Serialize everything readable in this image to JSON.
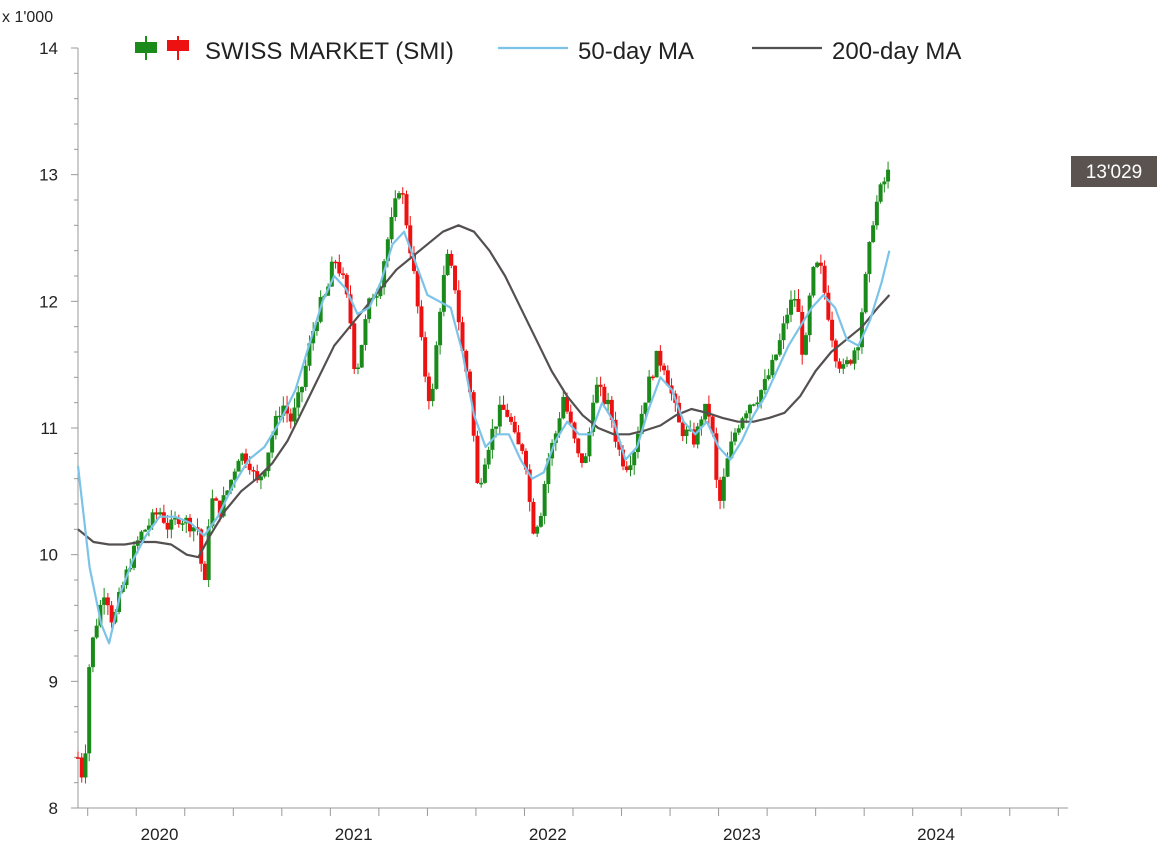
{
  "chart_data": {
    "type": "candlestick",
    "title": "SWISS MARKET (SMI)",
    "y_units_label": "x 1'000",
    "ylim": [
      8,
      14
    ],
    "yticks": [
      8,
      9,
      10,
      11,
      12,
      13,
      14
    ],
    "ytick_labels": [
      "8",
      "9",
      "10",
      "11",
      "12",
      "13",
      "14"
    ],
    "x_range_years": [
      2019.7,
      2024.8
    ],
    "xtick_years": [
      2020,
      2021,
      2022,
      2023,
      2024
    ],
    "xtick_labels": [
      "2020",
      "2021",
      "2022",
      "2023",
      "2024"
    ],
    "legend": {
      "position": "top",
      "entries": [
        "SWISS MARKET (SMI)",
        "50-day MA",
        "200-day MA"
      ]
    },
    "last_price_label": "13'029",
    "last_price_value": 13.029,
    "colors": {
      "up": "#1a8a1a",
      "down": "#ee1111",
      "ma50": "#7cc3e8",
      "ma200": "#555050",
      "label_bg": "#5a5350",
      "axis": "#999999"
    },
    "close_series": {
      "name": "SWISS MARKET (SMI)",
      "points": [
        [
          2019.7,
          8.4
        ],
        [
          2019.73,
          8.2
        ],
        [
          2019.76,
          9.2
        ],
        [
          2019.8,
          9.5
        ],
        [
          2019.84,
          9.75
        ],
        [
          2019.88,
          9.45
        ],
        [
          2019.92,
          9.7
        ],
        [
          2019.97,
          9.95
        ],
        [
          2020.02,
          10.15
        ],
        [
          2020.07,
          10.25
        ],
        [
          2020.12,
          10.35
        ],
        [
          2020.17,
          10.2
        ],
        [
          2020.22,
          10.3
        ],
        [
          2020.27,
          10.25
        ],
        [
          2020.32,
          10.2
        ],
        [
          2020.35,
          9.65
        ],
        [
          2020.38,
          10.45
        ],
        [
          2020.43,
          10.35
        ],
        [
          2020.48,
          10.55
        ],
        [
          2020.53,
          10.8
        ],
        [
          2020.58,
          10.75
        ],
        [
          2020.62,
          10.55
        ],
        [
          2020.66,
          10.7
        ],
        [
          2020.7,
          10.95
        ],
        [
          2020.75,
          11.2
        ],
        [
          2020.8,
          11.05
        ],
        [
          2020.85,
          11.3
        ],
        [
          2020.9,
          11.7
        ],
        [
          2020.94,
          11.95
        ],
        [
          2020.98,
          12.05
        ],
        [
          2021.02,
          12.35
        ],
        [
          2021.06,
          12.2
        ],
        [
          2021.1,
          11.9
        ],
        [
          2021.13,
          11.4
        ],
        [
          2021.17,
          11.75
        ],
        [
          2021.21,
          12.05
        ],
        [
          2021.25,
          12.1
        ],
        [
          2021.29,
          12.45
        ],
        [
          2021.32,
          12.65
        ],
        [
          2021.36,
          12.95
        ],
        [
          2021.4,
          12.55
        ],
        [
          2021.44,
          12.1
        ],
        [
          2021.48,
          11.5
        ],
        [
          2021.52,
          11.15
        ],
        [
          2021.56,
          11.9
        ],
        [
          2021.6,
          12.35
        ],
        [
          2021.64,
          12.15
        ],
        [
          2021.68,
          11.6
        ],
        [
          2021.72,
          11.3
        ],
        [
          2021.76,
          10.5
        ],
        [
          2021.8,
          10.8
        ],
        [
          2021.84,
          11.0
        ],
        [
          2021.88,
          11.15
        ],
        [
          2021.92,
          11.1
        ],
        [
          2021.96,
          10.85
        ],
        [
          2022.0,
          10.85
        ],
        [
          2022.04,
          10.2
        ],
        [
          2022.08,
          10.3
        ],
        [
          2022.12,
          10.75
        ],
        [
          2022.16,
          10.95
        ],
        [
          2022.2,
          11.25
        ],
        [
          2022.24,
          11.0
        ],
        [
          2022.28,
          10.75
        ],
        [
          2022.32,
          10.75
        ],
        [
          2022.36,
          11.35
        ],
        [
          2022.4,
          11.25
        ],
        [
          2022.44,
          11.15
        ],
        [
          2022.48,
          10.85
        ],
        [
          2022.52,
          10.7
        ],
        [
          2022.56,
          10.8
        ],
        [
          2022.6,
          11.1
        ],
        [
          2022.64,
          11.35
        ],
        [
          2022.68,
          11.55
        ],
        [
          2022.72,
          11.5
        ],
        [
          2022.76,
          11.25
        ],
        [
          2022.8,
          11.0
        ],
        [
          2022.84,
          10.95
        ],
        [
          2022.88,
          10.9
        ],
        [
          2022.92,
          11.15
        ],
        [
          2022.96,
          11.1
        ],
        [
          2023.0,
          10.35
        ],
        [
          2023.04,
          10.7
        ],
        [
          2023.08,
          10.95
        ],
        [
          2023.12,
          11.1
        ],
        [
          2023.16,
          11.2
        ],
        [
          2023.2,
          11.25
        ],
        [
          2023.24,
          11.35
        ],
        [
          2023.28,
          11.5
        ],
        [
          2023.32,
          11.7
        ],
        [
          2023.36,
          11.95
        ],
        [
          2023.4,
          12.05
        ],
        [
          2023.44,
          11.5
        ],
        [
          2023.48,
          12.2
        ],
        [
          2023.52,
          12.3
        ],
        [
          2023.56,
          11.95
        ],
        [
          2023.6,
          11.6
        ],
        [
          2023.64,
          11.45
        ],
        [
          2023.68,
          11.55
        ],
        [
          2023.72,
          11.7
        ],
        [
          2023.76,
          12.2
        ],
        [
          2023.8,
          12.7
        ],
        [
          2023.84,
          12.9
        ],
        [
          2023.88,
          13.03
        ]
      ]
    },
    "ma50_series": {
      "name": "50-day MA",
      "points": [
        [
          2019.7,
          10.7
        ],
        [
          2019.76,
          9.9
        ],
        [
          2019.82,
          9.45
        ],
        [
          2019.86,
          9.3
        ],
        [
          2019.92,
          9.7
        ],
        [
          2019.98,
          9.95
        ],
        [
          2020.05,
          10.15
        ],
        [
          2020.12,
          10.3
        ],
        [
          2020.2,
          10.3
        ],
        [
          2020.28,
          10.25
        ],
        [
          2020.35,
          10.15
        ],
        [
          2020.42,
          10.3
        ],
        [
          2020.5,
          10.55
        ],
        [
          2020.58,
          10.75
        ],
        [
          2020.66,
          10.85
        ],
        [
          2020.74,
          11.05
        ],
        [
          2020.82,
          11.3
        ],
        [
          2020.9,
          11.7
        ],
        [
          2020.96,
          12.0
        ],
        [
          2021.02,
          12.2
        ],
        [
          2021.08,
          12.1
        ],
        [
          2021.14,
          11.9
        ],
        [
          2021.2,
          11.95
        ],
        [
          2021.26,
          12.15
        ],
        [
          2021.32,
          12.45
        ],
        [
          2021.38,
          12.55
        ],
        [
          2021.44,
          12.3
        ],
        [
          2021.5,
          12.05
        ],
        [
          2021.56,
          12.0
        ],
        [
          2021.62,
          11.95
        ],
        [
          2021.68,
          11.6
        ],
        [
          2021.74,
          11.1
        ],
        [
          2021.8,
          10.85
        ],
        [
          2021.86,
          10.95
        ],
        [
          2021.92,
          10.95
        ],
        [
          2021.98,
          10.75
        ],
        [
          2022.04,
          10.6
        ],
        [
          2022.1,
          10.65
        ],
        [
          2022.16,
          10.9
        ],
        [
          2022.22,
          11.05
        ],
        [
          2022.28,
          10.95
        ],
        [
          2022.34,
          10.95
        ],
        [
          2022.4,
          11.2
        ],
        [
          2022.46,
          11.05
        ],
        [
          2022.52,
          10.75
        ],
        [
          2022.58,
          10.85
        ],
        [
          2022.64,
          11.15
        ],
        [
          2022.7,
          11.4
        ],
        [
          2022.76,
          11.3
        ],
        [
          2022.82,
          11.05
        ],
        [
          2022.88,
          10.95
        ],
        [
          2022.94,
          11.05
        ],
        [
          2023.0,
          10.85
        ],
        [
          2023.06,
          10.75
        ],
        [
          2023.12,
          10.9
        ],
        [
          2023.18,
          11.1
        ],
        [
          2023.24,
          11.25
        ],
        [
          2023.3,
          11.45
        ],
        [
          2023.36,
          11.65
        ],
        [
          2023.42,
          11.8
        ],
        [
          2023.48,
          11.95
        ],
        [
          2023.54,
          12.05
        ],
        [
          2023.6,
          11.95
        ],
        [
          2023.66,
          11.7
        ],
        [
          2023.72,
          11.65
        ],
        [
          2023.78,
          11.85
        ],
        [
          2023.84,
          12.15
        ],
        [
          2023.88,
          12.4
        ]
      ]
    },
    "ma200_series": {
      "name": "200-day MA",
      "points": [
        [
          2019.7,
          10.2
        ],
        [
          2019.78,
          10.1
        ],
        [
          2019.86,
          10.08
        ],
        [
          2019.94,
          10.08
        ],
        [
          2020.02,
          10.1
        ],
        [
          2020.1,
          10.1
        ],
        [
          2020.18,
          10.08
        ],
        [
          2020.26,
          10.0
        ],
        [
          2020.32,
          9.98
        ],
        [
          2020.38,
          10.15
        ],
        [
          2020.46,
          10.35
        ],
        [
          2020.54,
          10.5
        ],
        [
          2020.62,
          10.6
        ],
        [
          2020.7,
          10.72
        ],
        [
          2020.78,
          10.9
        ],
        [
          2020.86,
          11.15
        ],
        [
          2020.94,
          11.4
        ],
        [
          2021.02,
          11.65
        ],
        [
          2021.1,
          11.8
        ],
        [
          2021.18,
          11.95
        ],
        [
          2021.26,
          12.1
        ],
        [
          2021.34,
          12.25
        ],
        [
          2021.42,
          12.35
        ],
        [
          2021.5,
          12.45
        ],
        [
          2021.58,
          12.55
        ],
        [
          2021.66,
          12.6
        ],
        [
          2021.74,
          12.55
        ],
        [
          2021.82,
          12.4
        ],
        [
          2021.9,
          12.2
        ],
        [
          2021.98,
          11.95
        ],
        [
          2022.06,
          11.7
        ],
        [
          2022.14,
          11.45
        ],
        [
          2022.22,
          11.25
        ],
        [
          2022.3,
          11.1
        ],
        [
          2022.38,
          11.0
        ],
        [
          2022.46,
          10.95
        ],
        [
          2022.54,
          10.95
        ],
        [
          2022.62,
          10.98
        ],
        [
          2022.7,
          11.02
        ],
        [
          2022.78,
          11.1
        ],
        [
          2022.86,
          11.15
        ],
        [
          2022.94,
          11.12
        ],
        [
          2023.02,
          11.08
        ],
        [
          2023.1,
          11.05
        ],
        [
          2023.18,
          11.05
        ],
        [
          2023.26,
          11.08
        ],
        [
          2023.34,
          11.12
        ],
        [
          2023.42,
          11.25
        ],
        [
          2023.5,
          11.45
        ],
        [
          2023.58,
          11.6
        ],
        [
          2023.66,
          11.7
        ],
        [
          2023.74,
          11.8
        ],
        [
          2023.82,
          11.95
        ],
        [
          2023.88,
          12.05
        ]
      ]
    }
  }
}
